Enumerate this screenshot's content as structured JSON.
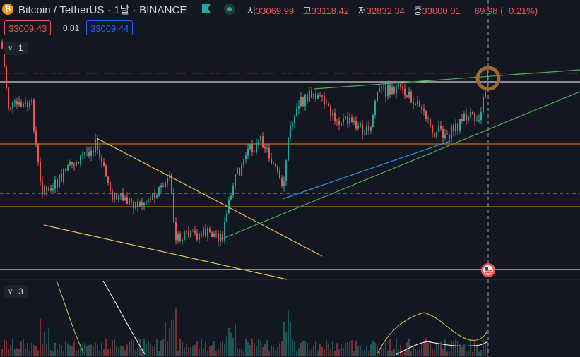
{
  "header": {
    "symbol_title": "Bitcoin / TetherUS · 1날 · BINANCE",
    "coin_icon": "bitcoin-icon",
    "flag_icon": "green-flag-icon",
    "ohlc": {
      "open_label": "시",
      "open": "33069.99",
      "high_label": "고",
      "high": "33118.42",
      "low_label": "저",
      "low": "32832.34",
      "close_label": "종",
      "close": "33000.01",
      "change": "−69.98 (−0.21%)"
    }
  },
  "order_panel": {
    "sell_price": "33009.43",
    "spread": "0.01",
    "buy_price": "33009.44"
  },
  "panes": {
    "main_collapse_count": "1",
    "indicator_collapse_count": "3"
  },
  "colors": {
    "background": "#131722",
    "up": "#26a69a",
    "down": "#ef5350",
    "orange_line": "#f57c00",
    "yellow_trend": "#e5c64b",
    "green_trend": "#4caf50",
    "blue_trend": "#2196f3",
    "white_line": "#ffffff",
    "circle_marker": "#a0692e"
  },
  "chart_data": {
    "type": "candlestick",
    "note_icons": [
      "us-flag-event-icon"
    ]
  }
}
